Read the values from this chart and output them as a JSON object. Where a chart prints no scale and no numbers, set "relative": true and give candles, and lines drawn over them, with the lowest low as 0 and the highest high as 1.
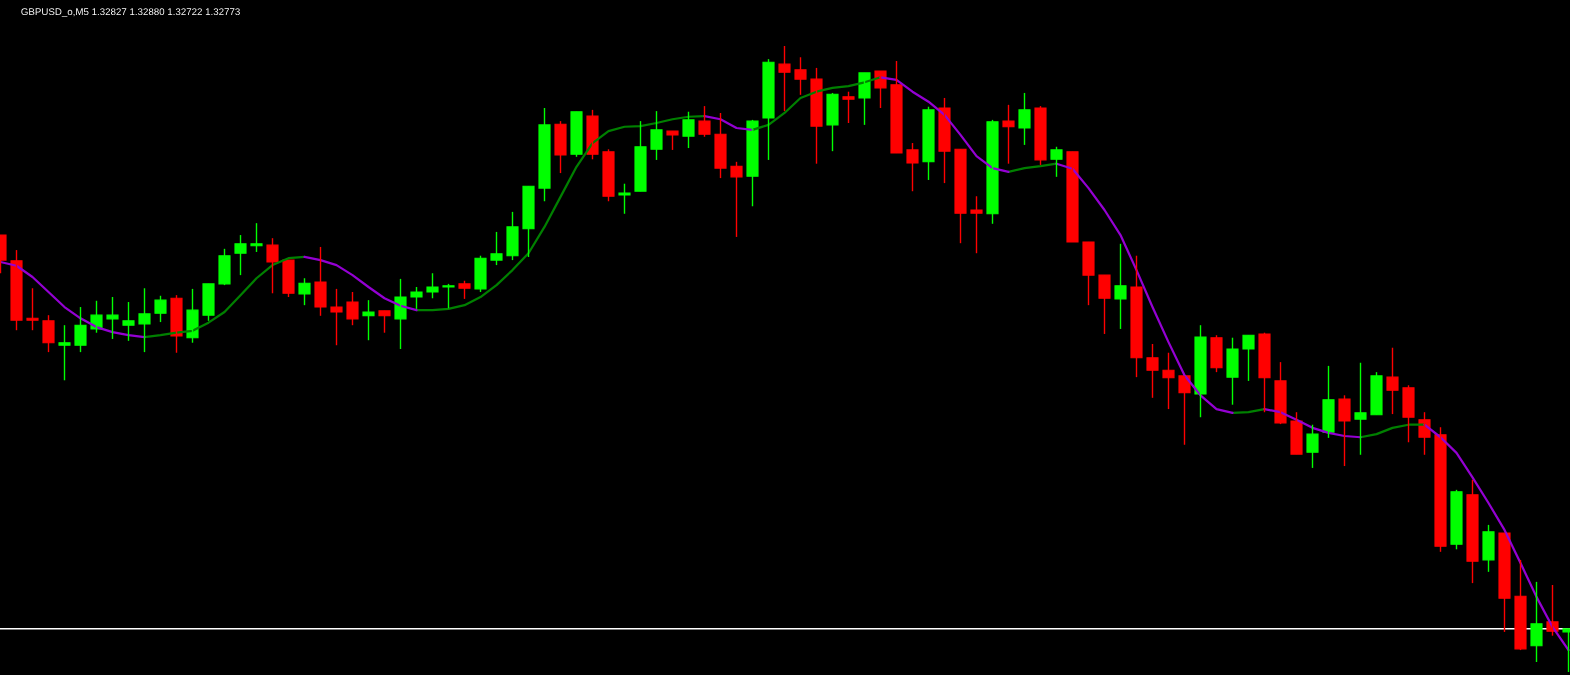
{
  "chart_data": {
    "type": "candlestick",
    "title": "GBPUSD_o,M5 1.32827 1.32880 1.32722 1.32773",
    "relative": true,
    "categories": [
      null,
      null,
      null,
      null,
      null,
      null,
      null,
      null,
      null,
      null,
      null,
      null,
      null,
      null,
      null,
      null,
      null,
      null,
      null,
      null,
      null,
      null,
      null,
      null,
      null,
      null,
      null,
      null,
      null,
      null,
      null,
      null,
      null,
      null,
      null,
      null,
      null,
      null,
      null,
      null,
      null,
      null,
      null,
      null,
      null,
      null,
      null,
      null,
      null,
      null,
      null,
      null,
      null,
      null,
      null,
      null,
      null,
      null,
      null,
      null,
      null,
      null,
      null,
      null,
      null,
      null,
      null,
      null,
      null,
      null,
      null,
      null,
      null,
      null,
      null,
      null,
      null,
      null,
      null,
      null,
      null,
      null,
      null,
      null,
      null,
      null,
      null,
      null,
      null,
      null,
      null,
      null,
      null,
      null,
      null,
      null,
      null,
      null,
      null
    ],
    "ohlc": [
      [
        0.698,
        0.698,
        0.637,
        0.658
      ],
      [
        0.657,
        0.674,
        0.546,
        0.562
      ],
      [
        0.565,
        0.613,
        0.546,
        0.562
      ],
      [
        0.561,
        0.57,
        0.511,
        0.526
      ],
      [
        0.522,
        0.554,
        0.466,
        0.526
      ],
      [
        0.522,
        0.583,
        0.511,
        0.554
      ],
      [
        0.548,
        0.593,
        0.542,
        0.57
      ],
      [
        0.564,
        0.599,
        0.532,
        0.57
      ],
      [
        0.554,
        0.591,
        0.529,
        0.561
      ],
      [
        0.556,
        0.613,
        0.511,
        0.572
      ],
      [
        0.573,
        0.601,
        0.559,
        0.594
      ],
      [
        0.597,
        0.602,
        0.51,
        0.537
      ],
      [
        0.534,
        0.612,
        0.526,
        0.578
      ],
      [
        0.57,
        0.62,
        0.561,
        0.62
      ],
      [
        0.62,
        0.676,
        0.618,
        0.665
      ],
      [
        0.669,
        0.698,
        0.634,
        0.684
      ],
      [
        0.681,
        0.717,
        0.671,
        0.684
      ],
      [
        0.682,
        0.693,
        0.605,
        0.655
      ],
      [
        0.658,
        0.658,
        0.599,
        0.605
      ],
      [
        0.604,
        0.629,
        0.586,
        0.621
      ],
      [
        0.623,
        0.679,
        0.569,
        0.583
      ],
      [
        0.583,
        0.612,
        0.522,
        0.575
      ],
      [
        0.591,
        0.607,
        0.554,
        0.564
      ],
      [
        0.569,
        0.594,
        0.53,
        0.575
      ],
      [
        0.577,
        0.577,
        0.542,
        0.569
      ],
      [
        0.564,
        0.628,
        0.516,
        0.599
      ],
      [
        0.599,
        0.615,
        0.58,
        0.607
      ],
      [
        0.607,
        0.637,
        0.597,
        0.615
      ],
      [
        0.615,
        0.62,
        0.581,
        0.617
      ],
      [
        0.62,
        0.625,
        0.596,
        0.613
      ],
      [
        0.612,
        0.665,
        0.607,
        0.661
      ],
      [
        0.658,
        0.703,
        0.65,
        0.668
      ],
      [
        0.665,
        0.735,
        0.658,
        0.711
      ],
      [
        0.708,
        0.776,
        0.663,
        0.776
      ],
      [
        0.773,
        0.901,
        0.752,
        0.874
      ],
      [
        0.875,
        0.88,
        0.797,
        0.826
      ],
      [
        0.827,
        0.895,
        0.823,
        0.895
      ],
      [
        0.888,
        0.898,
        0.819,
        0.827
      ],
      [
        0.831,
        0.835,
        0.752,
        0.76
      ],
      [
        0.762,
        0.78,
        0.732,
        0.765
      ],
      [
        0.768,
        0.88,
        0.768,
        0.839
      ],
      [
        0.835,
        0.896,
        0.818,
        0.866
      ],
      [
        0.864,
        0.864,
        0.834,
        0.858
      ],
      [
        0.856,
        0.895,
        0.837,
        0.882
      ],
      [
        0.88,
        0.904,
        0.855,
        0.859
      ],
      [
        0.859,
        0.893,
        0.789,
        0.805
      ],
      [
        0.808,
        0.815,
        0.695,
        0.791
      ],
      [
        0.792,
        0.882,
        0.744,
        0.88
      ],
      [
        0.885,
        0.979,
        0.818,
        0.974
      ],
      [
        0.971,
        1.0,
        0.896,
        0.958
      ],
      [
        0.962,
        0.982,
        0.922,
        0.947
      ],
      [
        0.947,
        0.965,
        0.812,
        0.872
      ],
      [
        0.874,
        0.925,
        0.832,
        0.923
      ],
      [
        0.919,
        0.927,
        0.877,
        0.915
      ],
      [
        0.917,
        0.957,
        0.874,
        0.957
      ],
      [
        0.96,
        0.96,
        0.901,
        0.933
      ],
      [
        0.938,
        0.976,
        0.829,
        0.829
      ],
      [
        0.834,
        0.845,
        0.768,
        0.813
      ],
      [
        0.815,
        0.903,
        0.786,
        0.898
      ],
      [
        0.901,
        0.917,
        0.781,
        0.832
      ],
      [
        0.835,
        0.835,
        0.685,
        0.733
      ],
      [
        0.738,
        0.76,
        0.669,
        0.733
      ],
      [
        0.732,
        0.882,
        0.716,
        0.879
      ],
      [
        0.88,
        0.906,
        0.812,
        0.871
      ],
      [
        0.869,
        0.925,
        0.842,
        0.898
      ],
      [
        0.901,
        0.904,
        0.81,
        0.818
      ],
      [
        0.819,
        0.839,
        0.791,
        0.834
      ],
      [
        0.831,
        0.831,
        0.687,
        0.687
      ],
      [
        0.687,
        0.687,
        0.586,
        0.634
      ],
      [
        0.634,
        0.634,
        0.54,
        0.597
      ],
      [
        0.596,
        0.684,
        0.548,
        0.617
      ],
      [
        0.615,
        0.665,
        0.471,
        0.502
      ],
      [
        0.502,
        0.524,
        0.438,
        0.482
      ],
      [
        0.482,
        0.51,
        0.42,
        0.47
      ],
      [
        0.473,
        0.473,
        0.363,
        0.446
      ],
      [
        0.444,
        0.554,
        0.407,
        0.535
      ],
      [
        0.534,
        0.538,
        0.479,
        0.486
      ],
      [
        0.471,
        0.534,
        0.427,
        0.516
      ],
      [
        0.516,
        0.538,
        0.465,
        0.538
      ],
      [
        0.54,
        0.542,
        0.415,
        0.47
      ],
      [
        0.465,
        0.495,
        0.396,
        0.398
      ],
      [
        0.401,
        0.415,
        0.348,
        0.348
      ],
      [
        0.351,
        0.395,
        0.326,
        0.38
      ],
      [
        0.383,
        0.489,
        0.374,
        0.435
      ],
      [
        0.436,
        0.442,
        0.329,
        0.401
      ],
      [
        0.404,
        0.494,
        0.347,
        0.414
      ],
      [
        0.411,
        0.479,
        0.411,
        0.473
      ],
      [
        0.471,
        0.518,
        0.412,
        0.45
      ],
      [
        0.454,
        0.458,
        0.367,
        0.407
      ],
      [
        0.403,
        0.415,
        0.347,
        0.375
      ],
      [
        0.379,
        0.391,
        0.192,
        0.201
      ],
      [
        0.204,
        0.291,
        0.196,
        0.288
      ],
      [
        0.283,
        0.307,
        0.142,
        0.177
      ],
      [
        0.179,
        0.235,
        0.16,
        0.224
      ],
      [
        0.222,
        0.222,
        0.064,
        0.118
      ],
      [
        0.121,
        0.179,
        0.035,
        0.037
      ],
      [
        0.042,
        0.144,
        0.016,
        0.077
      ],
      [
        0.08,
        0.139,
        0.058,
        0.065
      ],
      [
        0.064,
        0.069,
        0,
        0.069
      ]
    ],
    "colors": [
      "#ff0000",
      "#ff0000",
      "#ff0000",
      "#ff0000",
      "#00ff00",
      "#00ff00",
      "#00ff00",
      "#00ff00",
      "#00ff00",
      "#00ff00",
      "#00ff00",
      "#ff0000",
      "#00ff00",
      "#00ff00",
      "#00ff00",
      "#00ff00",
      "#00ff00",
      "#ff0000",
      "#ff0000",
      "#00ff00",
      "#ff0000",
      "#ff0000",
      "#ff0000",
      "#00ff00",
      "#ff0000",
      "#00ff00",
      "#00ff00",
      "#00ff00",
      "#00ff00",
      "#ff0000",
      "#00ff00",
      "#00ff00",
      "#00ff00",
      "#00ff00",
      "#00ff00",
      "#ff0000",
      "#00ff00",
      "#ff0000",
      "#ff0000",
      "#00ff00",
      "#00ff00",
      "#00ff00",
      "#ff0000",
      "#00ff00",
      "#ff0000",
      "#ff0000",
      "#ff0000",
      "#00ff00",
      "#00ff00",
      "#ff0000",
      "#ff0000",
      "#ff0000",
      "#00ff00",
      "#ff0000",
      "#00ff00",
      "#ff0000",
      "#ff0000",
      "#ff0000",
      "#00ff00",
      "#ff0000",
      "#ff0000",
      "#ff0000",
      "#00ff00",
      "#ff0000",
      "#00ff00",
      "#ff0000",
      "#00ff00",
      "#ff0000",
      "#ff0000",
      "#ff0000",
      "#00ff00",
      "#ff0000",
      "#ff0000",
      "#ff0000",
      "#ff0000",
      "#00ff00",
      "#ff0000",
      "#00ff00",
      "#00ff00",
      "#ff0000",
      "#ff0000",
      "#ff0000",
      "#00ff00",
      "#00ff00",
      "#ff0000",
      "#00ff00",
      "#00ff00",
      "#ff0000",
      "#ff0000",
      "#ff0000",
      "#ff0000",
      "#00ff00",
      "#ff0000",
      "#00ff00",
      "#ff0000",
      "#ff0000",
      "#00ff00",
      "#ff0000",
      "#00ff00"
    ],
    "series": [
      {
        "type": "line",
        "color": "#008000",
        "values": [
          null,
          null,
          null,
          null,
          null,
          null,
          null,
          null,
          null,
          0.535,
          0.538,
          0.542,
          0.545,
          0.558,
          0.575,
          0.602,
          0.629,
          0.65,
          0.661,
          0.663,
          null,
          null,
          null,
          null,
          null,
          null,
          0.578,
          0.578,
          0.58,
          0.586,
          0.599,
          0.618,
          0.642,
          0.669,
          0.711,
          0.759,
          0.807,
          0.845,
          0.864,
          0.871,
          0.872,
          0.877,
          0.883,
          0.887,
          0.888,
          null,
          null,
          0.866,
          0.874,
          0.893,
          0.917,
          0.927,
          0.933,
          0.936,
          0.942,
          0.95,
          null,
          null,
          null,
          null,
          null,
          null,
          null,
          0.799,
          0.805,
          0.808,
          0.812,
          null,
          null,
          null,
          null,
          null,
          null,
          null,
          null,
          null,
          null,
          0.414,
          0.415,
          0.42,
          null,
          null,
          null,
          null,
          null,
          0.375,
          0.38,
          0.39,
          0.395,
          0.395,
          null,
          null,
          null,
          null,
          null,
          null,
          null,
          null,
          null
        ]
      },
      {
        "type": "line",
        "color": "#9400d3",
        "values": [
          0.655,
          0.649,
          0.631,
          0.607,
          0.583,
          0.565,
          0.551,
          0.543,
          0.538,
          0.535,
          null,
          null,
          null,
          null,
          null,
          null,
          null,
          null,
          null,
          0.663,
          0.658,
          0.65,
          0.634,
          0.615,
          0.597,
          0.585,
          0.578,
          null,
          null,
          null,
          null,
          null,
          null,
          null,
          null,
          null,
          null,
          null,
          null,
          null,
          null,
          null,
          null,
          null,
          0.888,
          0.883,
          0.869,
          0.866,
          null,
          null,
          null,
          null,
          null,
          null,
          null,
          0.95,
          0.946,
          0.927,
          0.911,
          0.89,
          0.858,
          0.824,
          0.805,
          0.799,
          null,
          null,
          0.812,
          0.804,
          0.773,
          0.738,
          0.698,
          0.642,
          0.583,
          0.527,
          0.474,
          0.442,
          0.42,
          0.414,
          null,
          0.42,
          0.415,
          0.403,
          0.39,
          0.382,
          0.377,
          0.375,
          null,
          null,
          null,
          0.395,
          0.375,
          0.35,
          0.311,
          0.27,
          0.227,
          0.174,
          0.12,
          0.072,
          0.035
        ]
      }
    ],
    "ref_lines": [
      {
        "axis": "y",
        "value": 0.069,
        "color": "#ffffff"
      }
    ]
  }
}
